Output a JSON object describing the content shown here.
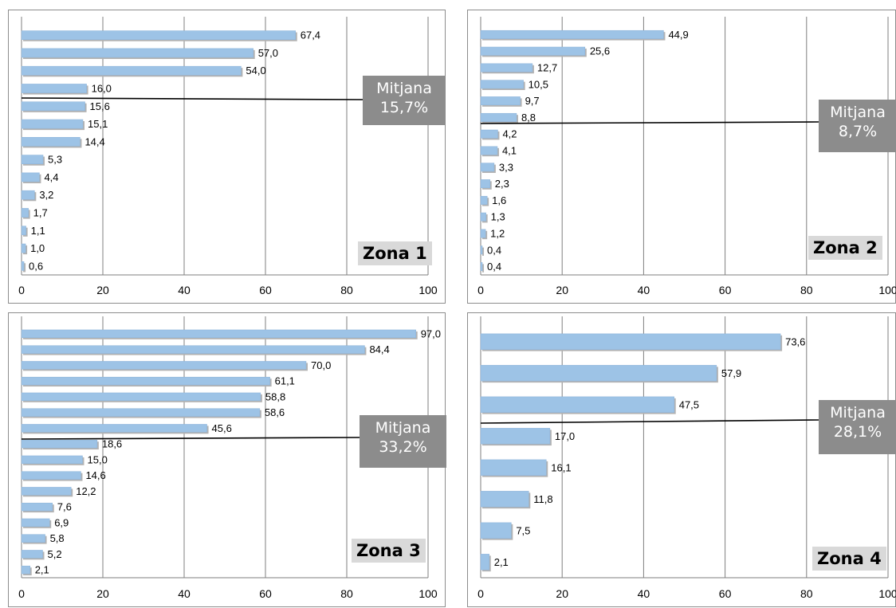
{
  "chart_data": [
    {
      "type": "bar",
      "orientation": "horizontal",
      "label": "Zona 1",
      "values": [
        67.4,
        57.0,
        54.0,
        16.0,
        15.6,
        15.1,
        14.4,
        5.3,
        4.4,
        3.2,
        1.7,
        1.1,
        1.0,
        0.6
      ],
      "value_labels": [
        "67,4",
        "57,0",
        "54,0",
        "16,0",
        "15,6",
        "15,1",
        "14,4",
        "5,3",
        "4,4",
        "3,2",
        "1,7",
        "1,1",
        "1,0",
        "0,6"
      ],
      "xlim": [
        0,
        100
      ],
      "xticks": [
        "0",
        "20",
        "40",
        "60",
        "80",
        "100"
      ],
      "mean_value": 15.7,
      "mean_title": "Mitjana",
      "mean_text": "15,7%",
      "bar_color": "#9dc3e6",
      "grid": true
    },
    {
      "type": "bar",
      "orientation": "horizontal",
      "label": "Zona 2",
      "values": [
        44.9,
        25.6,
        12.7,
        10.5,
        9.7,
        8.8,
        4.2,
        4.1,
        3.3,
        2.3,
        1.6,
        1.3,
        1.2,
        0.4,
        0.4
      ],
      "value_labels": [
        "44,9",
        "25,6",
        "12,7",
        "10,5",
        "9,7",
        "8,8",
        "4,2",
        "4,1",
        "3,3",
        "2,3",
        "1,6",
        "1,3",
        "1,2",
        "0,4",
        "0,4"
      ],
      "xlim": [
        0,
        100
      ],
      "xticks": [
        "0",
        "20",
        "40",
        "60",
        "80",
        "100"
      ],
      "mean_value": 8.7,
      "mean_title": "Mitjana",
      "mean_text": "8,7%",
      "bar_color": "#9dc3e6",
      "grid": true
    },
    {
      "type": "bar",
      "orientation": "horizontal",
      "label": "Zona 3",
      "values": [
        97.0,
        84.4,
        70.0,
        61.1,
        58.8,
        58.6,
        45.6,
        18.6,
        15.0,
        14.6,
        12.2,
        7.6,
        6.9,
        5.8,
        5.2,
        2.1
      ],
      "value_labels": [
        "97,0",
        "84,4",
        "70,0",
        "61,1",
        "58,8",
        "58,6",
        "45,6",
        "18,6",
        "15,0",
        "14,6",
        "12,2",
        "7,6",
        "6,9",
        "5,8",
        "5,2",
        "2,1"
      ],
      "xlim": [
        0,
        100
      ],
      "xticks": [
        "0",
        "20",
        "40",
        "60",
        "80",
        "100"
      ],
      "mean_value": 33.2,
      "mean_title": "Mitjana",
      "mean_text": "33,2%",
      "bar_color": "#9dc3e6",
      "grid": true
    },
    {
      "type": "bar",
      "orientation": "horizontal",
      "label": "Zona 4",
      "values": [
        73.6,
        57.9,
        47.5,
        17.0,
        16.1,
        11.8,
        7.5,
        2.1
      ],
      "value_labels": [
        "73,6",
        "57,9",
        "47,5",
        "17,0",
        "16,1",
        "11,8",
        "7,5",
        "2,1"
      ],
      "xlim": [
        0,
        100
      ],
      "xticks": [
        "0",
        "20",
        "40",
        "60",
        "80",
        "100"
      ],
      "mean_value": 28.1,
      "mean_title": "Mitjana",
      "mean_text": "28,1%",
      "bar_color": "#9dc3e6",
      "grid": true
    }
  ]
}
